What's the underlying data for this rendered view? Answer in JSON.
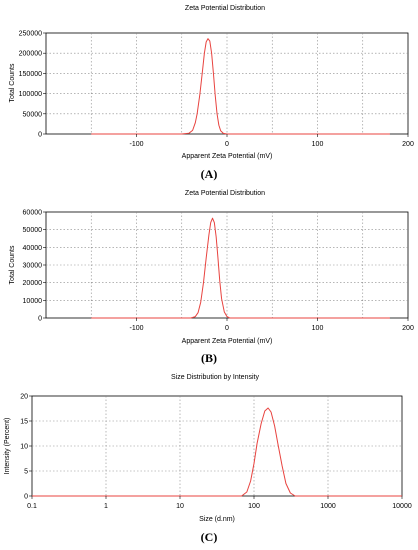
{
  "chart_data": [
    {
      "type": "line",
      "panel_label": "(A)",
      "title": "Zeta Potential Distribution",
      "xlabel": "Apparent Zeta Potential (mV)",
      "ylabel": "Total Counts",
      "xlim": [
        -200,
        200
      ],
      "ylim": [
        0,
        250000
      ],
      "x_scale": "linear",
      "grid": true,
      "line_color": "#e8433f",
      "x_ticks": [
        -100,
        0,
        100,
        200
      ],
      "x_tick_labels": [
        "-100",
        "0",
        "100",
        "200"
      ],
      "y_ticks": [
        0,
        50000,
        100000,
        150000,
        200000,
        250000
      ],
      "y_tick_labels": [
        "0",
        "50000",
        "100000",
        "150000",
        "200000",
        "250000"
      ],
      "series": [
        {
          "x": [
            -150,
            -60,
            -50,
            -42,
            -38,
            -35,
            -33,
            -30,
            -27,
            -25,
            -23,
            -21,
            -19,
            -17,
            -15,
            -13,
            -11,
            -9,
            -7,
            -4,
            0,
            100,
            180
          ],
          "y": [
            0,
            0,
            0,
            2000,
            9000,
            28000,
            50000,
            98000,
            158000,
            200000,
            228000,
            236000,
            230000,
            200000,
            150000,
            95000,
            50000,
            22000,
            8000,
            1500,
            0,
            0,
            0
          ]
        }
      ]
    },
    {
      "type": "line",
      "panel_label": "(B)",
      "title": "Zeta Potential Distribution",
      "xlabel": "Apparent Zeta Potential (mV)",
      "ylabel": "Total Counts",
      "xlim": [
        -200,
        200
      ],
      "ylim": [
        0,
        60000
      ],
      "x_scale": "linear",
      "grid": true,
      "line_color": "#e8433f",
      "x_ticks": [
        -100,
        0,
        100,
        200
      ],
      "x_tick_labels": [
        "-100",
        "0",
        "100",
        "200"
      ],
      "y_ticks": [
        0,
        10000,
        20000,
        30000,
        40000,
        50000,
        60000
      ],
      "y_tick_labels": [
        "0",
        "10000",
        "20000",
        "30000",
        "40000",
        "50000",
        "60000"
      ],
      "series": [
        {
          "x": [
            -150,
            -50,
            -40,
            -35,
            -32,
            -29,
            -26,
            -23,
            -20,
            -18,
            -16,
            -14,
            -12,
            -10,
            -8,
            -6,
            -3,
            0,
            3,
            5,
            100,
            180
          ],
          "y": [
            0,
            0,
            0,
            800,
            3000,
            9000,
            20000,
            34000,
            47000,
            54000,
            56500,
            54000,
            46000,
            34000,
            21000,
            11000,
            3500,
            800,
            0,
            0,
            0,
            0
          ]
        }
      ]
    },
    {
      "type": "line",
      "panel_label": "(C)",
      "title": "Size Distribution by Intensity",
      "xlabel": "Size (d.nm)",
      "ylabel": "Intensity (Percent)",
      "xlim": [
        0.1,
        10000
      ],
      "ylim": [
        0,
        20
      ],
      "x_scale": "log",
      "grid": true,
      "line_color": "#e8433f",
      "x_ticks": [
        0.1,
        1,
        10,
        100,
        1000,
        10000
      ],
      "x_tick_labels": [
        "0.1",
        "1",
        "10",
        "100",
        "1000",
        "10000"
      ],
      "y_ticks": [
        0,
        5,
        10,
        15,
        20
      ],
      "y_tick_labels": [
        "0",
        "5",
        "10",
        "15",
        "20"
      ],
      "series": [
        {
          "x": [
            0.1,
            1,
            10,
            50,
            68,
            80,
            90,
            100,
            110,
            125,
            140,
            155,
            170,
            190,
            210,
            240,
            270,
            310,
            360,
            500,
            1000,
            10000
          ],
          "y": [
            0,
            0,
            0,
            0,
            0,
            0.8,
            3,
            6.5,
            10.5,
            14.5,
            17,
            17.6,
            16.8,
            14,
            10.5,
            6,
            2.5,
            0.6,
            0,
            0,
            0,
            0
          ]
        }
      ]
    }
  ]
}
